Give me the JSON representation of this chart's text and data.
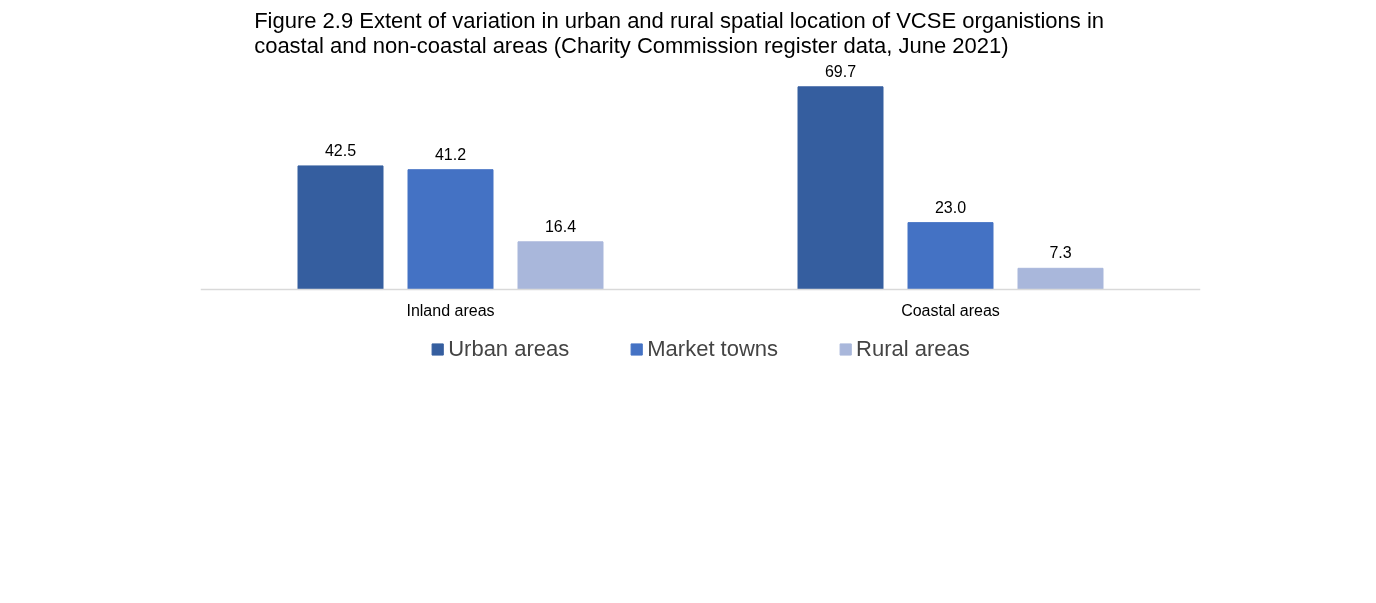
{
  "chart_data": {
    "type": "bar",
    "title": "Figure 2.9        Extent of variation in urban and rural spatial location of VCSE organistions in coastal and non-coastal areas (Charity Commission register data, June 2021)",
    "categories": [
      "Inland areas",
      "Coastal areas"
    ],
    "series": [
      {
        "name": "Urban areas",
        "color": "#355e9f",
        "values": [
          42.5,
          69.7
        ]
      },
      {
        "name": "Market towns",
        "color": "#4472c4",
        "values": [
          41.2,
          23.0
        ],
        "value_labels": [
          "41.2",
          "23.0"
        ]
      },
      {
        "name": "Rural areas",
        "color": "#a9b7db",
        "values": [
          16.4,
          7.3
        ]
      }
    ],
    "data_labels": true,
    "grid": false,
    "legend": "bottom"
  }
}
